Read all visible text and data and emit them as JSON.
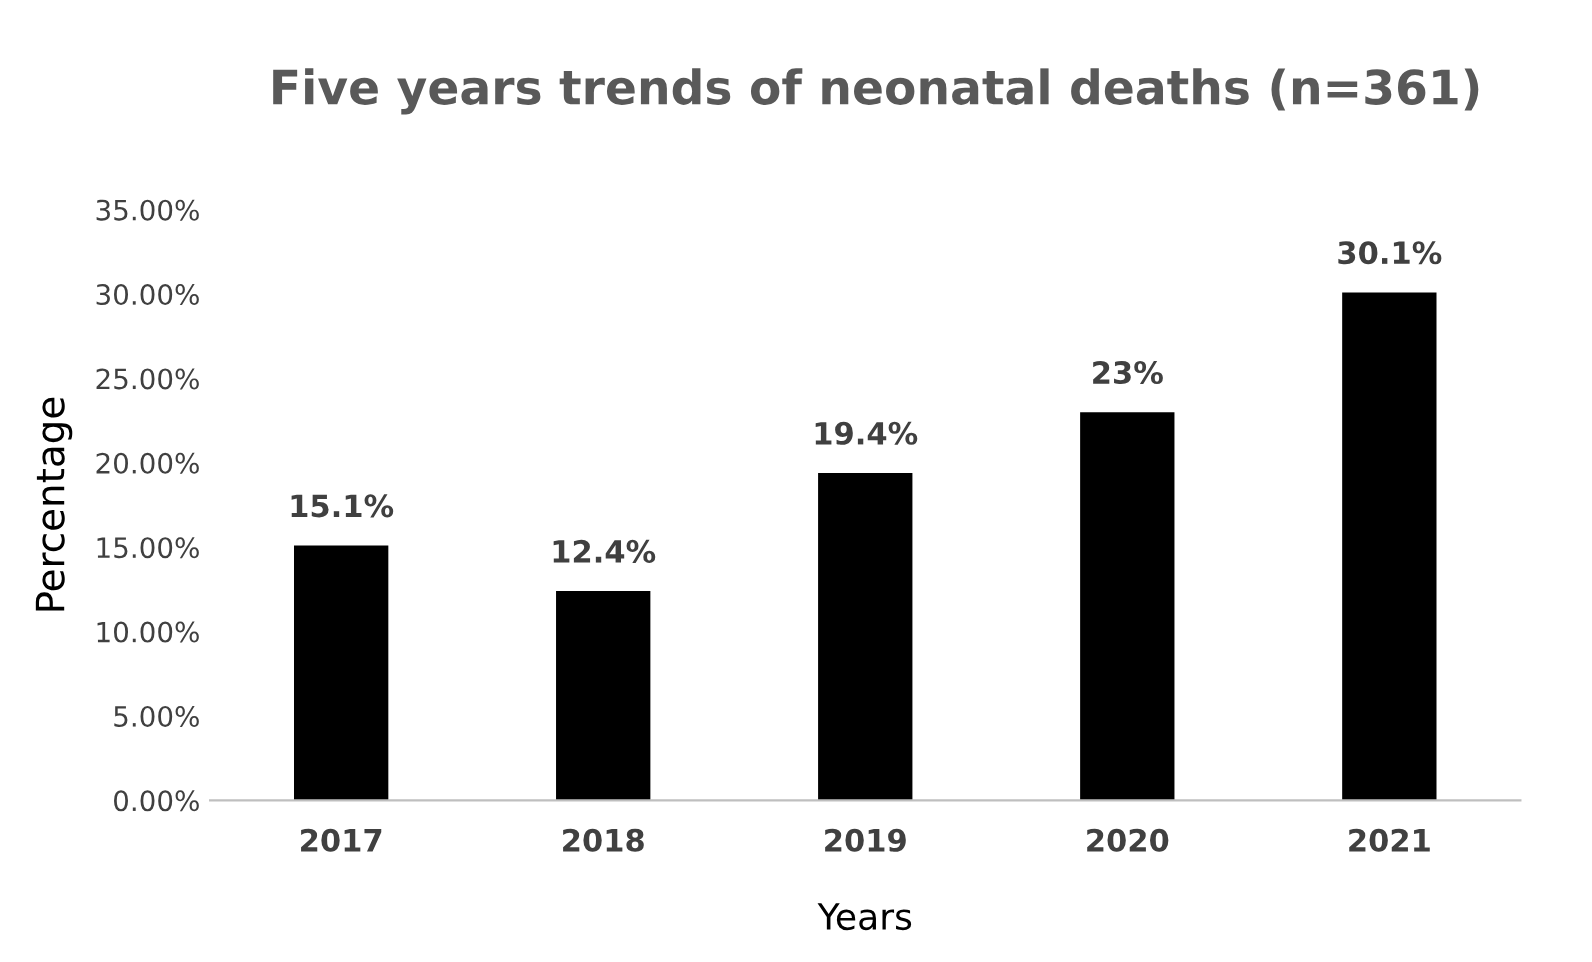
{
  "chart_data": {
    "type": "bar",
    "title": "Five years trends of neonatal deaths (n=361)",
    "xlabel": "Years",
    "ylabel": "Percentage",
    "categories": [
      "2017",
      "2018",
      "2019",
      "2020",
      "2021"
    ],
    "values": [
      15.1,
      12.4,
      19.4,
      23,
      30.1
    ],
    "value_labels": [
      "15.1%",
      "12.4%",
      "19.4%",
      "23%",
      "30.1%"
    ],
    "color": "#000000",
    "ylim": [
      0,
      35
    ],
    "yticks": [
      {
        "value": 0,
        "label": "0.00%"
      },
      {
        "value": 5,
        "label": "5.00%"
      },
      {
        "value": 10,
        "label": "10.00%"
      },
      {
        "value": 15,
        "label": "15.00%"
      },
      {
        "value": 20,
        "label": "20.00%"
      },
      {
        "value": 25,
        "label": "25.00%"
      },
      {
        "value": 30,
        "label": "30.00%"
      },
      {
        "value": 35,
        "label": "35.00%"
      }
    ],
    "grid": false,
    "legend": false
  }
}
